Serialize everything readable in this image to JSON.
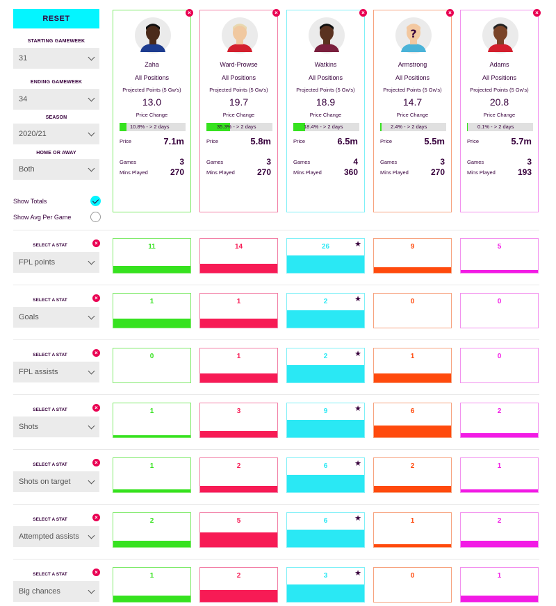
{
  "sidebar": {
    "reset_label": "RESET",
    "starting_gameweek": {
      "label": "STARTING GAMEWEEK",
      "value": "31"
    },
    "ending_gameweek": {
      "label": "ENDING GAMEWEEK",
      "value": "34"
    },
    "season": {
      "label": "SEASON",
      "value": "2020/21"
    },
    "home_away": {
      "label": "HOME OR AWAY",
      "value": "Both"
    },
    "show_totals": {
      "label": "Show Totals",
      "checked": true
    },
    "show_avg": {
      "label": "Show Avg Per Game",
      "checked": false
    }
  },
  "card_labels": {
    "position": "All Positions",
    "projected": "Projected Points (5 Gw's)",
    "price_change": "Price Change",
    "price": "Price",
    "games": "Games",
    "mins": "Mins Played"
  },
  "players": [
    {
      "name": "Zaha",
      "projected": "13.0",
      "price_change": "10.8% - > 2 days",
      "price_change_pct": 10.8,
      "price": "7.1m",
      "games": "3",
      "mins": "270",
      "color": "#7fea6a",
      "fill": "#36e21f"
    },
    {
      "name": "Ward-Prowse",
      "projected": "19.7",
      "price_change": "35.3% - > 2 days",
      "price_change_pct": 35.3,
      "price": "5.8m",
      "games": "3",
      "mins": "270",
      "color": "#f27fa6",
      "fill": "#f71b55"
    },
    {
      "name": "Watkins",
      "projected": "18.9",
      "price_change": "18.4% - > 2 days",
      "price_change_pct": 18.4,
      "price": "6.5m",
      "games": "4",
      "mins": "360",
      "color": "#7ff0f7",
      "fill": "#2ae8f4"
    },
    {
      "name": "Armstrong",
      "projected": "14.7",
      "price_change": "2.4% - > 2 days",
      "price_change_pct": 2.4,
      "price": "5.5m",
      "games": "3",
      "mins": "270",
      "color": "#f7a37f",
      "fill": "#ff4a0d"
    },
    {
      "name": "Adams",
      "projected": "20.8",
      "price_change": "0.1% - > 2 days",
      "price_change_pct": 0.1,
      "price": "5.7m",
      "games": "3",
      "mins": "193",
      "color": "#f290ee",
      "fill": "#f21be5"
    }
  ],
  "stat_select_label": "SELECT A STAT",
  "stats": [
    {
      "name": "FPL points",
      "values": [
        11,
        14,
        26,
        9,
        5
      ],
      "fills": [
        0.2,
        0.25,
        0.5,
        0.15,
        0.08
      ]
    },
    {
      "name": "Goals",
      "values": [
        1,
        1,
        2,
        0,
        0
      ],
      "fills": [
        0.25,
        0.25,
        0.5,
        0,
        0
      ]
    },
    {
      "name": "FPL assists",
      "values": [
        0,
        1,
        2,
        1,
        0
      ],
      "fills": [
        0,
        0.25,
        0.5,
        0.25,
        0
      ]
    },
    {
      "name": "Shots",
      "values": [
        1,
        3,
        9,
        6,
        2
      ],
      "fills": [
        0.06,
        0.17,
        0.5,
        0.33,
        0.11
      ]
    },
    {
      "name": "Shots on target",
      "values": [
        1,
        2,
        6,
        2,
        1
      ],
      "fills": [
        0.08,
        0.17,
        0.5,
        0.17,
        0.08
      ]
    },
    {
      "name": "Attempted assists",
      "values": [
        2,
        5,
        6,
        1,
        2
      ],
      "fills": [
        0.17,
        0.42,
        0.5,
        0.08,
        0.17
      ]
    },
    {
      "name": "Big chances",
      "values": [
        1,
        2,
        3,
        0,
        1
      ],
      "fills": [
        0.17,
        0.33,
        0.5,
        0,
        0.17
      ]
    }
  ],
  "best_marker": "★"
}
